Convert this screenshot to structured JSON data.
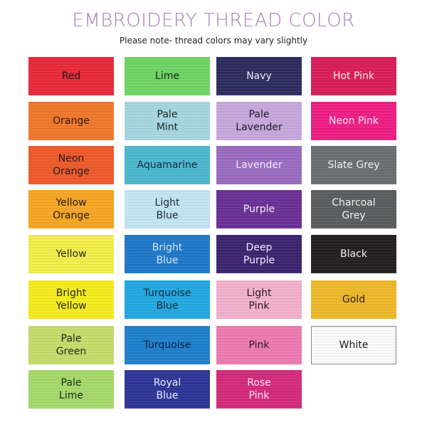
{
  "header": {
    "title": "EMBROIDERY THREAD COLOR",
    "subtitle": "Please note- thread colors may vary slightly"
  },
  "columns": [
    [
      {
        "label": "Red",
        "color": "#e8283a",
        "text_color": "#2a1a1a",
        "wrap": false
      },
      {
        "label": "Orange",
        "color": "#f0782a",
        "text_color": "#2a1a1a",
        "wrap": false
      },
      {
        "label": "Neon Orange",
        "color": "#ee5a2a",
        "text_color": "#2a1a1a",
        "wrap": true
      },
      {
        "label": "Yellow Orange",
        "color": "#f5a623",
        "text_color": "#2a1a1a",
        "wrap": true
      },
      {
        "label": "Yellow",
        "color": "#f2ee4a",
        "text_color": "#2a2a1a",
        "wrap": false
      },
      {
        "label": "Bright Yellow",
        "color": "#f5ec1e",
        "text_color": "#2a2a1a",
        "wrap": true
      },
      {
        "label": "Pale Green",
        "color": "#c5dc6a",
        "text_color": "#1e2a1a",
        "wrap": true
      },
      {
        "label": "Pale Lime",
        "color": "#a6d96a",
        "text_color": "#1e2a1a",
        "wrap": true
      }
    ],
    [
      {
        "label": "Lime",
        "color": "#6fd463",
        "text_color": "#1a2a1a",
        "wrap": false
      },
      {
        "label": "Pale Mint",
        "color": "#a6d6e0",
        "text_color": "#1a2a2a",
        "wrap": true
      },
      {
        "label": "Aquamarine",
        "color": "#4cb8d0",
        "text_color": "#1a2a3a",
        "wrap": false
      },
      {
        "label": "Light Blue",
        "color": "#c3e4f5",
        "text_color": "#1a2a3a",
        "wrap": true
      },
      {
        "label": "Bright Blue",
        "color": "#1f78c8",
        "text_color": "#cfe3f5",
        "wrap": true
      },
      {
        "label": "Turquoise Blue",
        "color": "#22a8e0",
        "text_color": "#1a2a3a",
        "wrap": true
      },
      {
        "label": "Turquoise",
        "color": "#1f80cc",
        "text_color": "#102040",
        "wrap": false
      },
      {
        "label": "Royal Blue",
        "color": "#2e3596",
        "text_color": "#e8ecff",
        "wrap": true
      }
    ],
    [
      {
        "label": "Navy",
        "color": "#2c2d5e",
        "text_color": "#e6e8f5",
        "wrap": false
      },
      {
        "label": "Pale Lavender",
        "color": "#c7a8dc",
        "text_color": "#221a2a",
        "wrap": true
      },
      {
        "label": "Lavender",
        "color": "#9a6cc0",
        "text_color": "#f0e8f8",
        "wrap": false
      },
      {
        "label": "Purple",
        "color": "#6a3096",
        "text_color": "#f0e8f8",
        "wrap": false
      },
      {
        "label": "Deep Purple",
        "color": "#3c2470",
        "text_color": "#f0e8f8",
        "wrap": true
      },
      {
        "label": "Light Pink",
        "color": "#f2b0cc",
        "text_color": "#2a1a22",
        "wrap": true
      },
      {
        "label": "Pink",
        "color": "#ee7ab0",
        "text_color": "#2a1a22",
        "wrap": false
      },
      {
        "label": "Rose Pink",
        "color": "#d42a7c",
        "text_color": "#fbe4f0",
        "wrap": true
      }
    ],
    [
      {
        "label": "Hot Pink",
        "color": "#d81e5a",
        "text_color": "#fde8ee",
        "wrap": false
      },
      {
        "label": "Neon Pink",
        "color": "#ee1e84",
        "text_color": "#fde8f2",
        "wrap": false
      },
      {
        "label": "Slate Grey",
        "color": "#6a6e72",
        "text_color": "#f0f0f0",
        "wrap": false
      },
      {
        "label": "Charcoal Grey",
        "color": "#5a5c5e",
        "text_color": "#f0f0f0",
        "wrap": true
      },
      {
        "label": "Black",
        "color": "#231f20",
        "text_color": "#f0f0f0",
        "wrap": false
      },
      {
        "label": "Gold",
        "color": "#eeb82a",
        "text_color": "#2a2210",
        "wrap": false
      },
      {
        "label": "White",
        "color": "#fafafa",
        "text_color": "#1a1a1a",
        "wrap": false,
        "bordered": true
      }
    ]
  ]
}
